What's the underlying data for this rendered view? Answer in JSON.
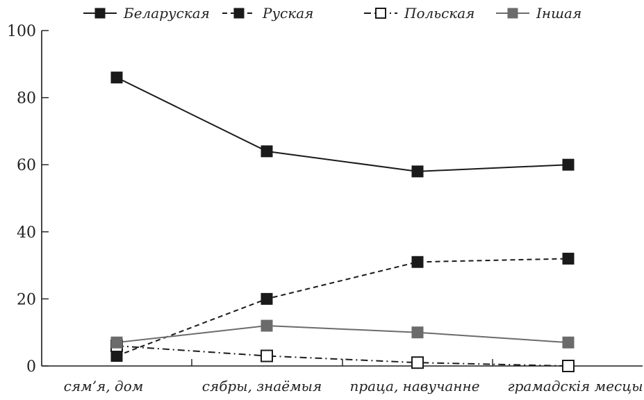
{
  "chart_data": {
    "type": "line",
    "categories": [
      "сям’я, дом",
      "сябры, знаёмыя",
      "праца, навучанне",
      "грамадскія месцы"
    ],
    "series": [
      {
        "name": "Беларуская",
        "values": [
          86,
          64,
          58,
          60
        ],
        "color": "#1a1a1a",
        "marker": "filled-square",
        "line": "solid"
      },
      {
        "name": "Руская",
        "values": [
          3,
          20,
          31,
          32
        ],
        "color": "#1a1a1a",
        "marker": "filled-square",
        "line": "dashed"
      },
      {
        "name": "Польская",
        "values": [
          6,
          3,
          1,
          0
        ],
        "color": "#1a1a1a",
        "marker": "open-square",
        "line": "dash-dot"
      },
      {
        "name": "Іншая",
        "values": [
          7,
          12,
          10,
          7
        ],
        "color": "#6b6b6b",
        "marker": "filled-square",
        "line": "solid"
      }
    ],
    "y_ticks": [
      "0",
      "20",
      "40",
      "60",
      "80",
      "100"
    ],
    "ylim": [
      0,
      100
    ],
    "title": "",
    "xlabel": "",
    "ylabel": "",
    "grid": false,
    "legend_position": "top"
  }
}
